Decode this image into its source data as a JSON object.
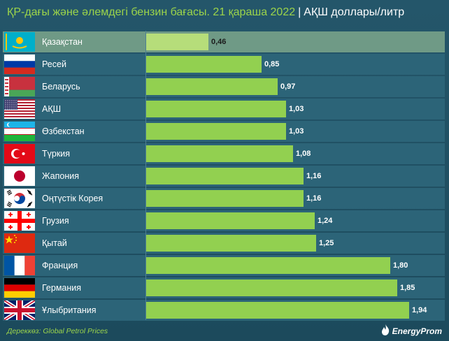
{
  "title": {
    "main": "ҚР-дағы және әлемдегі бензин бағасы. 21 қараша 2022",
    "separator": "|",
    "unit": "АҚШ доллары/литр"
  },
  "source": "Дереккөз: Global Petrol Prices",
  "logo": {
    "text": "EnergyProm",
    "icon": "flame-logo-icon"
  },
  "colors": {
    "background": "#1f4e60",
    "row": "#2c6478",
    "highlight_row": "#6f9a86",
    "bar": "#92d050",
    "title": "#9cd44a"
  },
  "chart_data": {
    "type": "bar",
    "orientation": "horizontal",
    "title": "ҚР-дағы және әлемдегі бензин бағасы. 21 қараша 2022",
    "unit": "АҚШ доллары/литр",
    "xlim": [
      0,
      2.0
    ],
    "grid": false,
    "legend": "none",
    "highlight_category": "Қазақстан",
    "categories": [
      "Қазақстан",
      "Ресей",
      "Беларусь",
      "АҚШ",
      "Өзбекстан",
      "Түркия",
      "Жапония",
      "Оңтүстік Корея",
      "Грузия",
      "Қытай",
      "Франция",
      "Германия",
      "Ұлыбритания"
    ],
    "flags": [
      "kazakhstan-flag-icon",
      "russia-flag-icon",
      "belarus-flag-icon",
      "usa-flag-icon",
      "uzbekistan-flag-icon",
      "turkey-flag-icon",
      "japan-flag-icon",
      "south-korea-flag-icon",
      "georgia-flag-icon",
      "china-flag-icon",
      "france-flag-icon",
      "germany-flag-icon",
      "uk-flag-icon"
    ],
    "values": [
      0.46,
      0.85,
      0.97,
      1.03,
      1.03,
      1.08,
      1.16,
      1.16,
      1.24,
      1.25,
      1.8,
      1.85,
      1.94
    ],
    "value_labels": [
      "0,46",
      "0,85",
      "0,97",
      "1,03",
      "1,03",
      "1,08",
      "1,16",
      "1,16",
      "1,24",
      "1,25",
      "1,80",
      "1,85",
      "1,94"
    ]
  }
}
